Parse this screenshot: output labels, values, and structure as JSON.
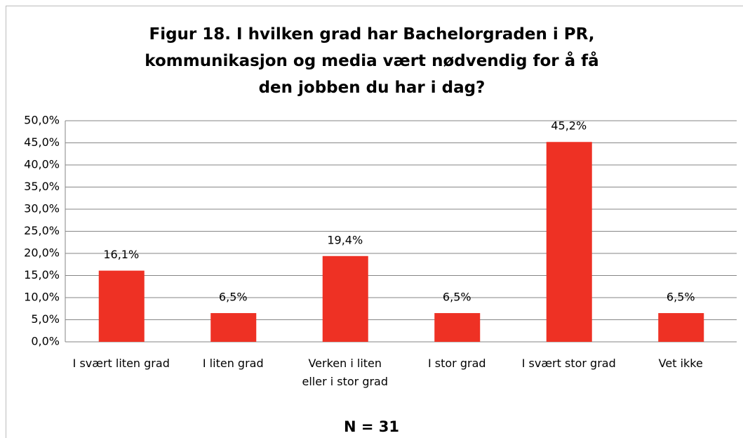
{
  "chart_data": {
    "type": "bar",
    "title": "Figur 18. I hvilken grad har Bachelorgraden i PR, kommunikasjon og media vært nødvendig for å få den jobben du har i dag?",
    "categories": [
      "I svært liten grad",
      "I liten grad",
      "Verken i liten eller i stor grad",
      "I stor grad",
      "I svært stor grad",
      "Vet ikke"
    ],
    "values": [
      16.1,
      6.5,
      19.4,
      6.5,
      45.2,
      6.5
    ],
    "value_labels": [
      "16,1%",
      "6,5%",
      "19,4%",
      "6,5%",
      "45,2%",
      "6,5%"
    ],
    "color": "#ee3124",
    "ylim": [
      0,
      50
    ],
    "yticks": [
      {
        "value": 0,
        "label": "0,0%"
      },
      {
        "value": 5,
        "label": "5,0%"
      },
      {
        "value": 10,
        "label": "10,0%"
      },
      {
        "value": 15,
        "label": "15,0%"
      },
      {
        "value": 20,
        "label": "20,0%"
      },
      {
        "value": 25,
        "label": "25,0%"
      },
      {
        "value": 30,
        "label": "30,0%"
      },
      {
        "value": 35,
        "label": "35,0%"
      },
      {
        "value": 40,
        "label": "40,0%"
      },
      {
        "value": 45,
        "label": "45,0%"
      },
      {
        "value": 50,
        "label": "50,0%"
      }
    ],
    "grid": true,
    "annotation": "N = 31"
  }
}
